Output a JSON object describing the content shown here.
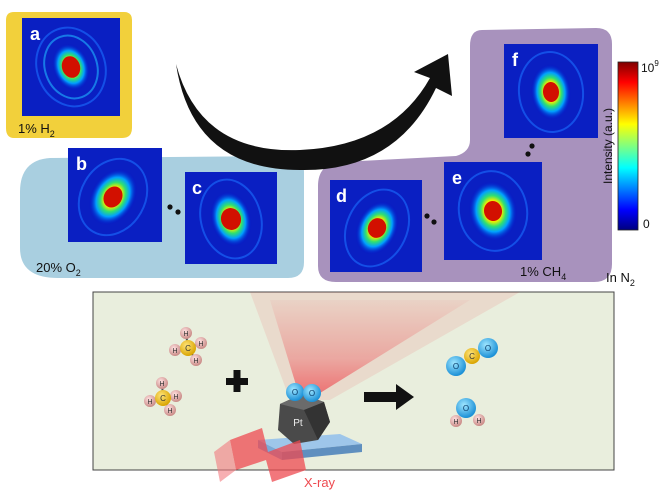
{
  "panels": {
    "a": {
      "letter": "a",
      "condition_prefix": "1% H",
      "condition_sub": "2"
    },
    "b": {
      "letter": "b"
    },
    "c": {
      "letter": "c",
      "condition_prefix": "20% O",
      "condition_sub": "2"
    },
    "d": {
      "letter": "d"
    },
    "e": {
      "letter": "e",
      "condition_prefix": "1% CH",
      "condition_sub": "4"
    },
    "f": {
      "letter": "f"
    }
  },
  "ambient": {
    "prefix": "In N",
    "sub": "2"
  },
  "colorbar": {
    "label": "Intensity (a.u.)",
    "max_base": "10",
    "max_exp": "9",
    "min": "0"
  },
  "reaction": {
    "catalyst": "Pt",
    "beam": "X-ray",
    "atoms": {
      "carbon": "C",
      "hydrogen": "H",
      "oxygen": "O"
    }
  },
  "colors": {
    "h2_region": "#f2d03b",
    "o2_region": "#a9cfe0",
    "ch4_region": "#a892bd",
    "reactor_bg": "#e9eedd",
    "beam": "#ee4a50",
    "arrow": "#111111"
  }
}
